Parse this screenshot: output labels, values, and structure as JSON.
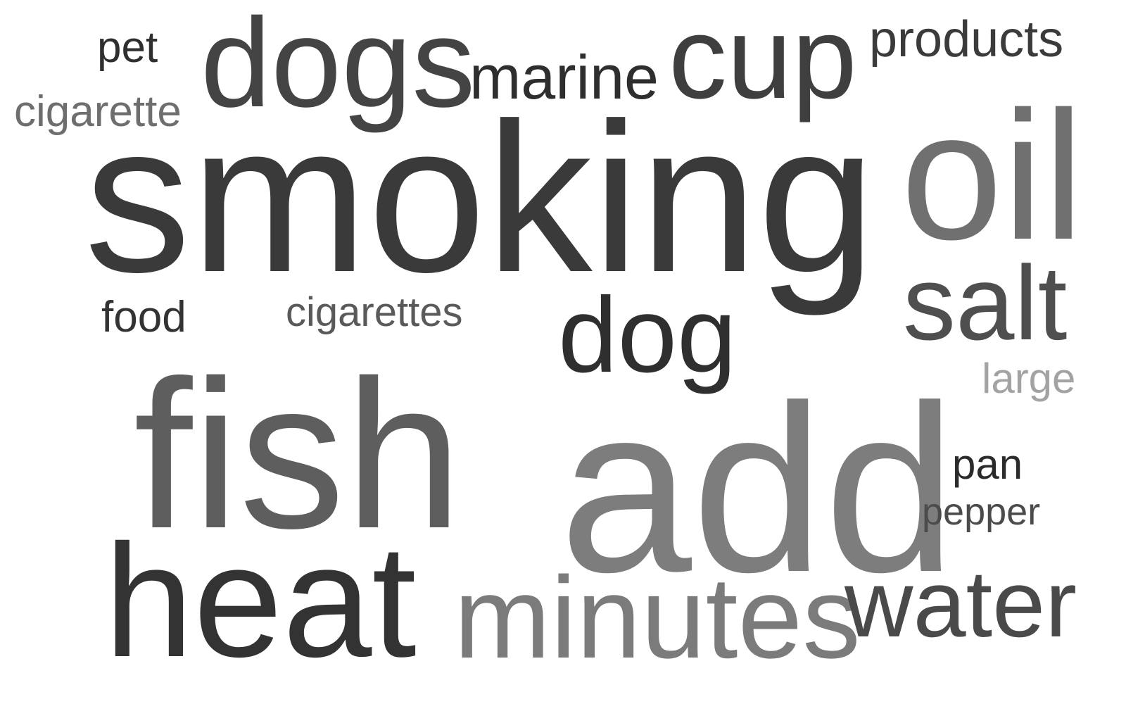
{
  "words": {
    "smoking": {
      "text": "smoking",
      "color": "#3a3a3a"
    },
    "fish": {
      "text": "fish",
      "color": "#5e5e5e"
    },
    "add": {
      "text": "add",
      "color": "#7d7d7d"
    },
    "oil": {
      "text": "oil",
      "color": "#707070"
    },
    "heat": {
      "text": "heat",
      "color": "#333333"
    },
    "dogs": {
      "text": "dogs",
      "color": "#444444"
    },
    "cup": {
      "text": "cup",
      "color": "#3f3f3f"
    },
    "minutes": {
      "text": "minutes",
      "color": "#7b7b7b"
    },
    "water": {
      "text": "water",
      "color": "#4a4a4a"
    },
    "salt": {
      "text": "salt",
      "color": "#4f4f4f"
    },
    "dog": {
      "text": "dog",
      "color": "#2f2f2f"
    },
    "marine": {
      "text": "marine",
      "color": "#2e2e2e"
    },
    "products": {
      "text": "products",
      "color": "#3b3b3b"
    },
    "pet": {
      "text": "pet",
      "color": "#2f2f2f"
    },
    "cigarette": {
      "text": "cigarette",
      "color": "#6e6e6e"
    },
    "food": {
      "text": "food",
      "color": "#333333"
    },
    "cigarettes": {
      "text": "cigarettes",
      "color": "#5a5a5a"
    },
    "large": {
      "text": "large",
      "color": "#a3a3a3"
    },
    "pan": {
      "text": "pan",
      "color": "#2b2b2b"
    },
    "pepper": {
      "text": "pepper",
      "color": "#4b4b4b"
    }
  }
}
